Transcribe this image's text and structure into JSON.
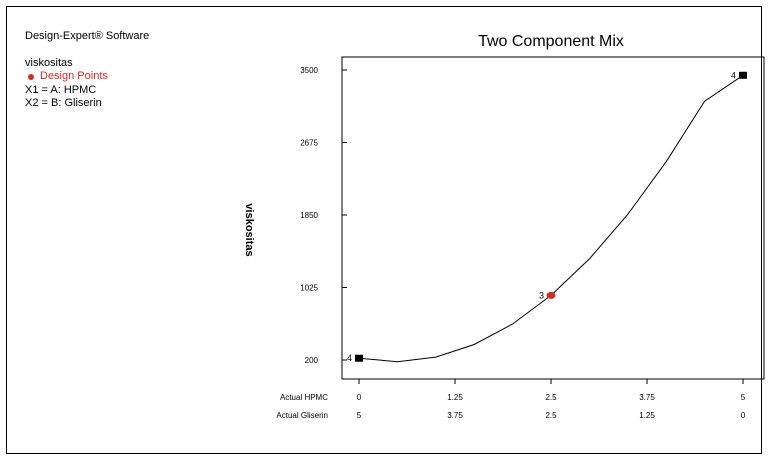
{
  "app": {
    "software": "Design-Expert® Software",
    "response_name": "viskositas",
    "legend_item": "Design Points",
    "factors": [
      "X1 = A: HPMC",
      "X2 = B: Gliserin"
    ]
  },
  "colors": {
    "design_point": "#d42a22",
    "frame": "#000000",
    "curve": "#000000"
  },
  "chart_data": {
    "type": "line",
    "title": "Two Component Mix",
    "ylabel": "viskositas",
    "x_axis_rows": [
      {
        "label": "Actual HPMC",
        "ticks": [
          "0",
          "1.25",
          "2.5",
          "3.75",
          "5"
        ]
      },
      {
        "label": "Actual Gliserin",
        "ticks": [
          "5",
          "3.75",
          "2.5",
          "1.25",
          "0"
        ]
      }
    ],
    "xlim": [
      0,
      5
    ],
    "ylim": [
      200,
      3500
    ],
    "yticks": [
      "200",
      "1025",
      "1850",
      "2675",
      "3500"
    ],
    "curve": {
      "x": [
        0,
        0.5,
        1,
        1.5,
        2,
        2.5,
        3,
        3.5,
        4,
        4.5,
        5
      ],
      "y": [
        220,
        181,
        233,
        376,
        610,
        935,
        1351,
        1858,
        2456,
        3145,
        3440
      ]
    },
    "design_points": [
      {
        "x": 0,
        "y": 220,
        "label": "4",
        "shape": "square"
      },
      {
        "x": 2.5,
        "y": 935,
        "label": "3",
        "shape": "circle"
      },
      {
        "x": 5,
        "y": 3440,
        "label": "4",
        "shape": "square"
      }
    ]
  }
}
